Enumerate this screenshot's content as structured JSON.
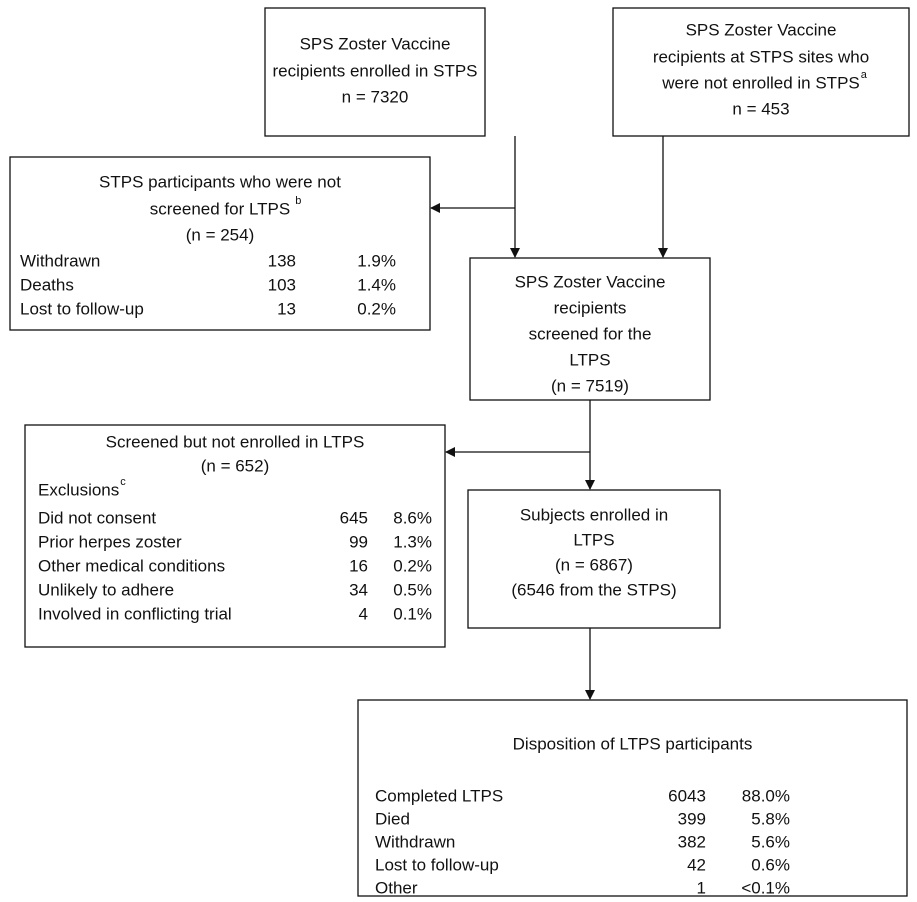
{
  "boxes": [
    {
      "lines": [
        "SPS Zoster Vaccine",
        "recipients enrolled in STPS",
        "n = 7320"
      ]
    },
    {
      "lines": [
        "SPS Zoster Vaccine",
        "recipients at STPS sites who",
        "were not enrolled in STPS",
        "n = 453"
      ],
      "superscript": "a"
    },
    {
      "lines": [
        "STPS participants who were not",
        "screened for LTPS",
        "(n = 254)"
      ],
      "superscript": "b",
      "rows": [
        [
          "Withdrawn",
          138,
          "1.9%"
        ],
        [
          "Deaths",
          103,
          "1.4%"
        ],
        [
          "Lost to follow-up",
          13,
          "0.2%"
        ]
      ]
    },
    {
      "lines": [
        "SPS Zoster Vaccine",
        "recipients",
        "screened for the",
        "LTPS",
        "(n = 7519)"
      ]
    },
    {
      "lines": [
        "Screened but not enrolled in LTPS",
        "(n = 652)",
        "Exclusions"
      ],
      "superscript": "c",
      "rows": [
        [
          "Did not consent",
          645,
          "8.6%"
        ],
        [
          "Prior herpes zoster",
          99,
          "1.3%"
        ],
        [
          "Other medical conditions",
          16,
          "0.2%"
        ],
        [
          "Unlikely to adhere",
          34,
          "0.5%"
        ],
        [
          "Involved in conflicting trial",
          4,
          "0.1%"
        ]
      ]
    },
    {
      "lines": [
        "Subjects enrolled in",
        "LTPS",
        "(n = 6867)",
        "(6546 from the STPS)"
      ]
    },
    {
      "lines": [
        "Disposition of LTPS participants"
      ],
      "rows": [
        [
          "Completed LTPS",
          6043,
          "88.0%"
        ],
        [
          "Died",
          399,
          "5.8%"
        ],
        [
          "Withdrawn",
          382,
          "5.6%"
        ],
        [
          "Lost to follow-up",
          42,
          "0.6%"
        ],
        [
          "Other",
          1,
          "<0.1%"
        ]
      ]
    }
  ]
}
